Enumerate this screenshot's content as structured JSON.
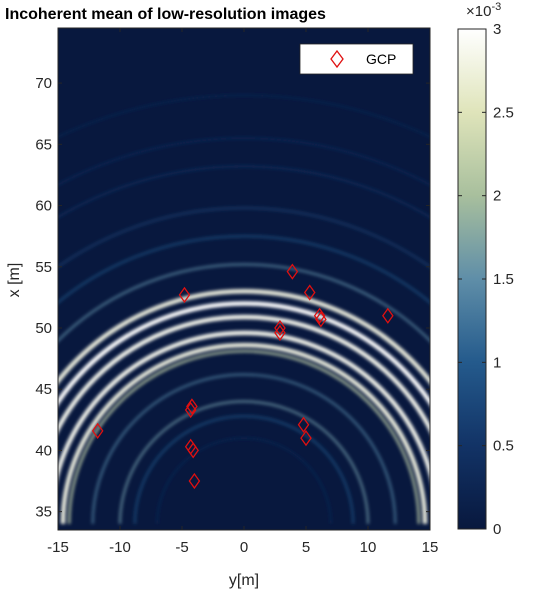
{
  "chart_data": {
    "type": "heatmap",
    "title": "Incoherent mean of low-resolution images",
    "xlabel": "y[m]",
    "ylabel": "x [m]",
    "xlim": [
      -15,
      15
    ],
    "ylim": [
      33.5,
      74.5
    ],
    "x_ticks": [
      -15,
      -10,
      -5,
      0,
      5,
      10,
      15
    ],
    "x_tick_labels": [
      "-15",
      "-10",
      "-5",
      "0",
      "5",
      "10",
      "15"
    ],
    "y_ticks": [
      35,
      40,
      45,
      50,
      55,
      60,
      65,
      70
    ],
    "y_tick_labels": [
      "35",
      "40",
      "45",
      "50",
      "55",
      "60",
      "65",
      "70"
    ],
    "legend": {
      "entries": [
        {
          "name": "GCP",
          "marker": "diamond",
          "color": "#e01010"
        }
      ],
      "placement": "top-right"
    },
    "colorbar": {
      "range": [
        0,
        3
      ],
      "exponent_label": "×10",
      "exponent": "-3",
      "ticks": [
        0,
        0.5,
        1,
        1.5,
        2,
        2.5,
        3
      ],
      "tick_labels": [
        "0",
        "0.5",
        "1",
        "1.5",
        "2",
        "2.5",
        "3"
      ],
      "colormap": [
        "#08183e",
        "#123366",
        "#245a8c",
        "#5f8ea8",
        "#a8bf9d",
        "#dfe4ba",
        "#ffffff"
      ]
    },
    "series": [
      {
        "name": "GCP",
        "points": [
          {
            "x": -11.8,
            "y": 41.6
          },
          {
            "x": -4.8,
            "y": 52.7
          },
          {
            "x": -4.2,
            "y": 43.6
          },
          {
            "x": -4.3,
            "y": 43.3
          },
          {
            "x": -4.3,
            "y": 40.3
          },
          {
            "x": -4.1,
            "y": 40.0
          },
          {
            "x": -4.0,
            "y": 37.5
          },
          {
            "x": 2.9,
            "y": 50.0
          },
          {
            "x": 2.9,
            "y": 49.6
          },
          {
            "x": 3.9,
            "y": 54.6
          },
          {
            "x": 4.8,
            "y": 42.1
          },
          {
            "x": 5.0,
            "y": 41.0
          },
          {
            "x": 5.3,
            "y": 52.9
          },
          {
            "x": 6.1,
            "y": 51.0
          },
          {
            "x": 6.2,
            "y": 50.7
          },
          {
            "x": 11.6,
            "y": 51.0
          }
        ]
      }
    ],
    "heatmap_arcs": [
      {
        "r": 7.0,
        "v": 0.4
      },
      {
        "r": 8.8,
        "v": 1.0
      },
      {
        "r": 10.0,
        "v": 1.6
      },
      {
        "r": 12.2,
        "v": 1.4
      },
      {
        "r": 14.1,
        "v": 2.2
      },
      {
        "r": 14.6,
        "v": 2.8
      },
      {
        "r": 15.6,
        "v": 2.9
      },
      {
        "r": 16.9,
        "v": 2.9
      },
      {
        "r": 18.0,
        "v": 3.0
      },
      {
        "r": 19.0,
        "v": 2.8
      },
      {
        "r": 21.2,
        "v": 1.5
      },
      {
        "r": 23.5,
        "v": 1.0
      },
      {
        "r": 25.8,
        "v": 0.8
      },
      {
        "r": 29.2,
        "v": 0.6
      },
      {
        "r": 31.5,
        "v": 0.5
      },
      {
        "r": 35.0,
        "v": 0.4
      }
    ]
  }
}
